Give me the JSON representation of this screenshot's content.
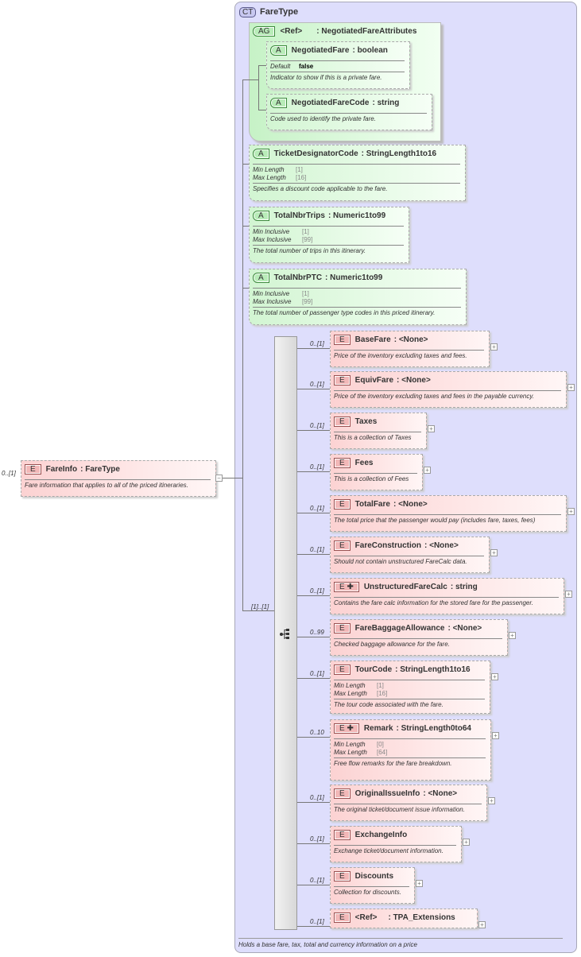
{
  "complex_type": {
    "badge": "CT",
    "name": "FareType",
    "description": "Holds a base fare, tax, total and currency information on a price"
  },
  "root": {
    "badge": "E",
    "cardinality": "0..[1]",
    "name": "FareInfo",
    "type": "FareType",
    "description": "Fare information that applies to all of the priced itineraries."
  },
  "attribute_group": {
    "badge": "AG",
    "ref": "<Ref>",
    "type": "NegotiatedFareAttributes",
    "attributes": [
      {
        "badge": "A",
        "name": "NegotiatedFare",
        "type": "boolean",
        "facets": [
          {
            "label": "Default",
            "value": "false"
          }
        ],
        "description": "Indicator to show if this is a private fare."
      },
      {
        "badge": "A",
        "name": "NegotiatedFareCode",
        "type": "string",
        "facets": [],
        "description": "Code used to identify the private fare."
      }
    ]
  },
  "attributes": [
    {
      "badge": "A",
      "name": "TicketDesignatorCode",
      "type": "StringLength1to16",
      "facets": [
        {
          "label": "Min Length",
          "value": "[1]"
        },
        {
          "label": "Max Length",
          "value": "[16]"
        }
      ],
      "description": "Specifies a discount code applicable to the fare."
    },
    {
      "badge": "A",
      "name": "TotalNbrTrips",
      "type": "Numeric1to99",
      "facets": [
        {
          "label": "Min Inclusive",
          "value": "[1]"
        },
        {
          "label": "Max Inclusive",
          "value": "[99]"
        }
      ],
      "description": "The total number of trips in this itinerary."
    },
    {
      "badge": "A",
      "name": "TotalNbrPTC",
      "type": "Numeric1to99",
      "facets": [
        {
          "label": "Min Inclusive",
          "value": "[1]"
        },
        {
          "label": "Max Inclusive",
          "value": "[99]"
        }
      ],
      "description": "The total number of passenger type codes in this priced itinerary."
    }
  ],
  "sequence": {
    "cardinality": "[1]..[1]",
    "icon": "sequence-icon"
  },
  "elements": [
    {
      "badge": "E",
      "cardinality": "0..[1]",
      "name": "BaseFare",
      "type": "<None>",
      "facets": [],
      "description": "Price of the inventory excluding taxes and fees."
    },
    {
      "badge": "E",
      "cardinality": "0..[1]",
      "name": "EquivFare",
      "type": "<None>",
      "facets": [],
      "description": "Price of the inventory excluding taxes and fees in the payable currency."
    },
    {
      "badge": "E",
      "cardinality": "0..[1]",
      "name": "Taxes",
      "type": "",
      "facets": [],
      "description": "This is a collection of Taxes"
    },
    {
      "badge": "E",
      "cardinality": "0..[1]",
      "name": "Fees",
      "type": "",
      "facets": [],
      "description": "This is a collection of Fees"
    },
    {
      "badge": "E",
      "cardinality": "0..[1]",
      "name": "TotalFare",
      "type": "<None>",
      "facets": [],
      "description": "The total price that the passenger would pay (includes fare, taxes, fees)"
    },
    {
      "badge": "E",
      "cardinality": "0..[1]",
      "name": "FareConstruction",
      "type": "<None>",
      "facets": [],
      "description": "Should not contain unstructured FareCalc data."
    },
    {
      "badge": "E ✚",
      "cardinality": "0..[1]",
      "name": "UnstructuredFareCalc",
      "type": "string",
      "facets": [],
      "description": "Contains the fare calc information for the stored fare for the passenger."
    },
    {
      "badge": "E",
      "cardinality": "0..99",
      "name": "FareBaggageAllowance",
      "type": "<None>",
      "facets": [],
      "description": "Checked baggage allowance for the fare."
    },
    {
      "badge": "E",
      "cardinality": "0..[1]",
      "name": "TourCode",
      "type": "StringLength1to16",
      "facets": [
        {
          "label": "Min Length",
          "value": "[1]"
        },
        {
          "label": "Max Length",
          "value": "[16]"
        }
      ],
      "description": "The tour code associated with the fare."
    },
    {
      "badge": "E ✚",
      "cardinality": "0..10",
      "name": "Remark",
      "type": "StringLength0to64",
      "facets": [
        {
          "label": "Min Length",
          "value": "[0]"
        },
        {
          "label": "Max Length",
          "value": "[64]"
        }
      ],
      "description": "Free flow remarks for the fare breakdown."
    },
    {
      "badge": "E",
      "cardinality": "0..[1]",
      "name": "OriginalIssueInfo",
      "type": "<None>",
      "facets": [],
      "description": "The original ticket/document issue information."
    },
    {
      "badge": "E",
      "cardinality": "0..[1]",
      "name": "ExchangeInfo",
      "type": "",
      "facets": [],
      "description": "Exchange ticket/document information."
    },
    {
      "badge": "E",
      "cardinality": "0..[1]",
      "name": "Discounts",
      "type": "",
      "facets": [],
      "description": "Collection for discounts."
    },
    {
      "badge": "E",
      "cardinality": "0..[1]",
      "name": "<Ref>",
      "type": "TPA_Extensions",
      "facets": [],
      "description": ""
    }
  ],
  "colors": {
    "complex_type_bg": "#dedefc",
    "element": "#fcd2d2",
    "attribute": "#d2f5d2"
  }
}
